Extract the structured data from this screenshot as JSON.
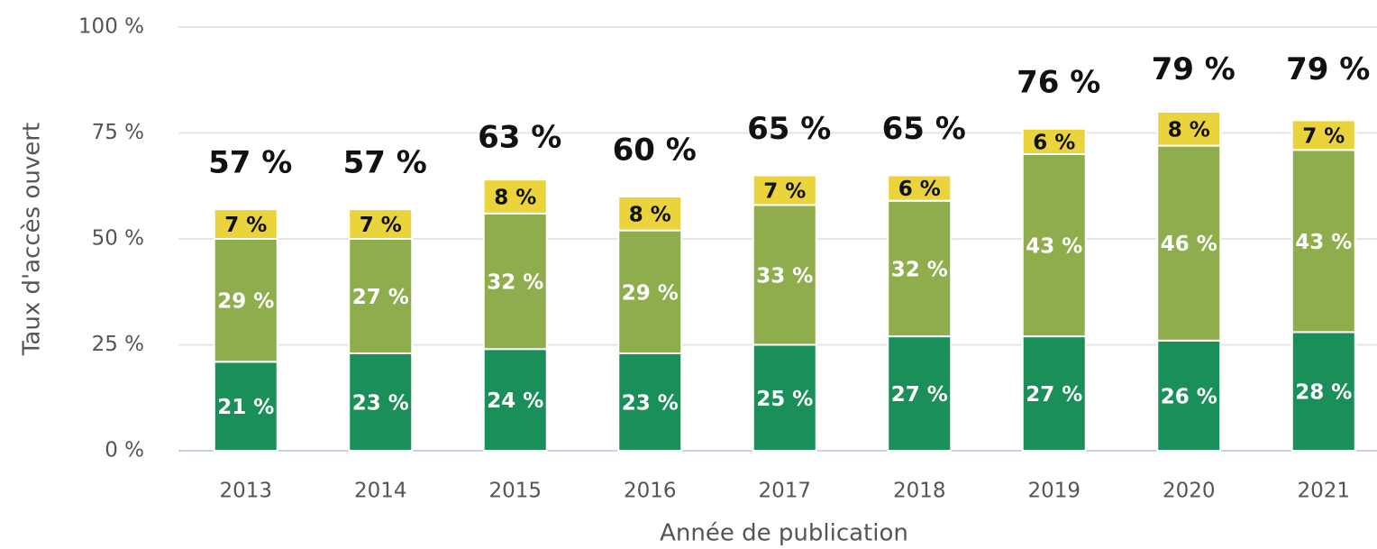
{
  "chart_data": {
    "type": "stacked_bar",
    "categories": [
      "2013",
      "2014",
      "2015",
      "2016",
      "2017",
      "2018",
      "2019",
      "2020",
      "2021"
    ],
    "series": [
      {
        "color": "#1b8f59",
        "values": [
          21,
          23,
          24,
          23,
          25,
          27,
          27,
          26,
          28
        ],
        "value_labels": [
          "21 %",
          "23 %",
          "24 %",
          "23 %",
          "25 %",
          "27 %",
          "27 %",
          "26 %",
          "28 %"
        ]
      },
      {
        "color": "#8fad4d",
        "values": [
          29,
          27,
          32,
          29,
          33,
          32,
          43,
          46,
          43
        ],
        "value_labels": [
          "29 %",
          "27 %",
          "32 %",
          "29 %",
          "33 %",
          "32 %",
          "43 %",
          "46 %",
          "43 %"
        ]
      },
      {
        "color": "#ebd33b",
        "values": [
          7,
          7,
          8,
          8,
          7,
          6,
          6,
          8,
          7
        ],
        "value_labels": [
          "7 %",
          "7 %",
          "8 %",
          "8 %",
          "7 %",
          "6 %",
          "6 %",
          "8 %",
          "7 %"
        ]
      }
    ],
    "totals": [
      57,
      57,
      63,
      60,
      65,
      65,
      76,
      79,
      79
    ],
    "total_labels": [
      "57 %",
      "57 %",
      "63 %",
      "60 %",
      "65 %",
      "65 %",
      "76 %",
      "79 %",
      "79 %"
    ],
    "xlabel": "Année de publication",
    "ylabel": "Taux d'accès ouvert",
    "ylim": [
      0,
      100
    ],
    "yticks": [
      {
        "value": 0,
        "label": "0 %"
      },
      {
        "value": 25,
        "label": "25 %"
      },
      {
        "value": 50,
        "label": "50 %"
      },
      {
        "value": 75,
        "label": "75 %"
      },
      {
        "value": 100,
        "label": "100 %"
      }
    ],
    "grid": true
  }
}
